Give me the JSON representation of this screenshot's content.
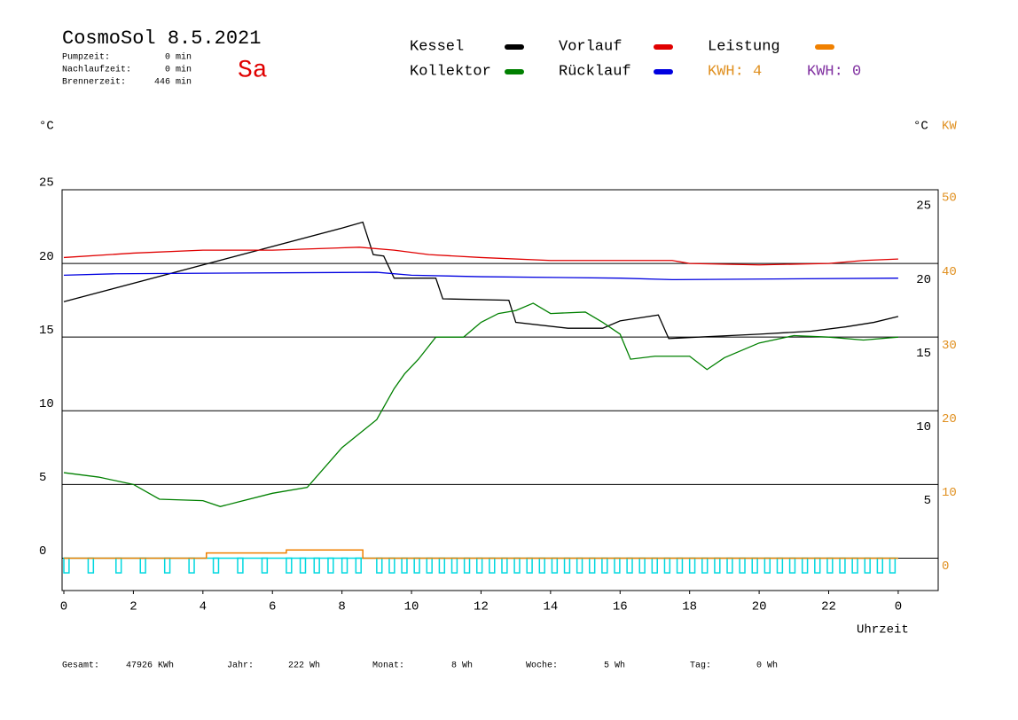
{
  "chart_data": {
    "type": "line",
    "title": "CosmoSol 8.5.2021",
    "day": "Sa",
    "info": [
      [
        "Pumpzeit:",
        "0 min"
      ],
      [
        "Nachlaufzeit:",
        "0 min"
      ],
      [
        "Brennerzeit:",
        "446 min"
      ]
    ],
    "y_unit": "°C",
    "y_right_unit": "°C",
    "y2_unit": "KW",
    "x_label": "Uhrzeit",
    "xlim": [
      0,
      25.15
    ],
    "xticks": [
      0,
      2,
      4,
      6,
      8,
      10,
      12,
      14,
      16,
      18,
      20,
      22,
      {
        "value": 24,
        "label": "0"
      }
    ],
    "ylim": [
      -2.2,
      25
    ],
    "yticks": [
      0,
      5,
      10,
      15,
      20,
      25
    ],
    "right_yticks": [
      5,
      10,
      15,
      20,
      25
    ],
    "y2lim": [
      -4.4,
      50
    ],
    "y2ticks": [
      0,
      10,
      20,
      30,
      40,
      50
    ],
    "grid": true,
    "series": [
      {
        "name": "Kessel",
        "color": "#000000",
        "x": [
          0,
          8,
          8.6,
          8.9,
          9.2,
          9.5,
          10.7,
          10.9,
          12.8,
          13.0,
          14.5,
          15.5,
          16.0,
          17.1,
          17.4,
          20,
          21.5,
          22.5,
          23.3,
          24
        ],
        "values": [
          17.4,
          22.4,
          22.8,
          20.6,
          20.5,
          19.0,
          19.0,
          17.6,
          17.5,
          16.0,
          15.6,
          15.6,
          16.1,
          16.5,
          14.9,
          15.2,
          15.4,
          15.7,
          16.0,
          16.4
        ]
      },
      {
        "name": "Vorlauf",
        "color": "#e00000",
        "x": [
          0,
          2,
          4,
          6,
          8.5,
          9.5,
          10.5,
          12,
          14,
          17.5,
          18,
          20,
          22,
          23,
          24
        ],
        "values": [
          20.4,
          20.7,
          20.9,
          20.9,
          21.1,
          20.9,
          20.6,
          20.4,
          20.2,
          20.2,
          20.0,
          19.9,
          20.0,
          20.2,
          20.3
        ]
      },
      {
        "name": "Leistung",
        "color": "#f08000",
        "axis": "y2",
        "x": [
          0,
          4.1,
          4.1,
          6.4,
          6.4,
          8.6,
          8.6,
          24
        ],
        "values": [
          0,
          0,
          0.7,
          0.7,
          1.1,
          1.1,
          0,
          0
        ]
      },
      {
        "name": "Kollektor",
        "color": "#008000",
        "x": [
          0,
          1,
          2,
          2.75,
          4,
          4.5,
          5,
          6,
          7,
          8,
          9,
          9.5,
          9.8,
          10.2,
          10.7,
          11.5,
          12,
          12.5,
          13,
          13.5,
          14,
          15,
          15.5,
          16,
          16.3,
          17,
          18,
          18.5,
          19,
          20,
          21,
          22,
          23,
          24
        ],
        "values": [
          5.8,
          5.5,
          5.0,
          4.0,
          3.9,
          3.5,
          3.8,
          4.4,
          4.8,
          7.5,
          9.4,
          11.5,
          12.5,
          13.5,
          15.0,
          15.0,
          16.0,
          16.6,
          16.8,
          17.3,
          16.6,
          16.7,
          16.0,
          15.2,
          13.5,
          13.7,
          13.7,
          12.8,
          13.6,
          14.6,
          15.1,
          15.0,
          14.8,
          15.0
        ]
      },
      {
        "name": "Rücklauf",
        "color": "#0000e0",
        "x": [
          0,
          1.5,
          9,
          10,
          12,
          16,
          17.5,
          24
        ],
        "values": [
          19.2,
          19.3,
          19.4,
          19.2,
          19.1,
          19.0,
          18.9,
          19.0
        ]
      }
    ],
    "kwh_labels": [
      {
        "text": "KWH: 4",
        "color": "#e09020"
      },
      {
        "text": "KWH: 0",
        "color": "#8030a0"
      }
    ],
    "pump": {
      "color": "#00d8e0",
      "baseline": 0,
      "low": -1,
      "width": 0.15,
      "range": [
        0,
        24
      ],
      "starts": [
        0,
        0.7,
        1.5,
        2.2,
        2.9,
        3.6,
        4.3,
        5.0,
        5.7,
        6.4,
        6.8,
        7.2,
        7.6,
        8.0,
        8.4,
        9.0,
        9.36,
        9.72,
        10.08,
        10.44,
        10.8,
        11.16,
        11.52,
        11.88,
        12.24,
        12.6,
        12.96,
        13.32,
        13.68,
        14.04,
        14.4,
        14.76,
        15.12,
        15.48,
        15.84,
        16.2,
        16.56,
        16.92,
        17.28,
        17.64,
        18.0,
        18.36,
        18.72,
        19.08,
        19.44,
        19.8,
        20.16,
        20.52,
        20.88,
        21.24,
        21.6,
        21.96,
        22.32,
        22.68,
        23.04,
        23.4,
        23.76
      ]
    },
    "footer": [
      [
        "Gesamt:",
        "47926 KWh"
      ],
      [
        "Jahr:",
        "222 Wh"
      ],
      [
        "Monat:",
        "8 Wh"
      ],
      [
        "Woche:",
        "5 Wh"
      ],
      [
        "Tag:",
        "0 Wh"
      ]
    ]
  }
}
